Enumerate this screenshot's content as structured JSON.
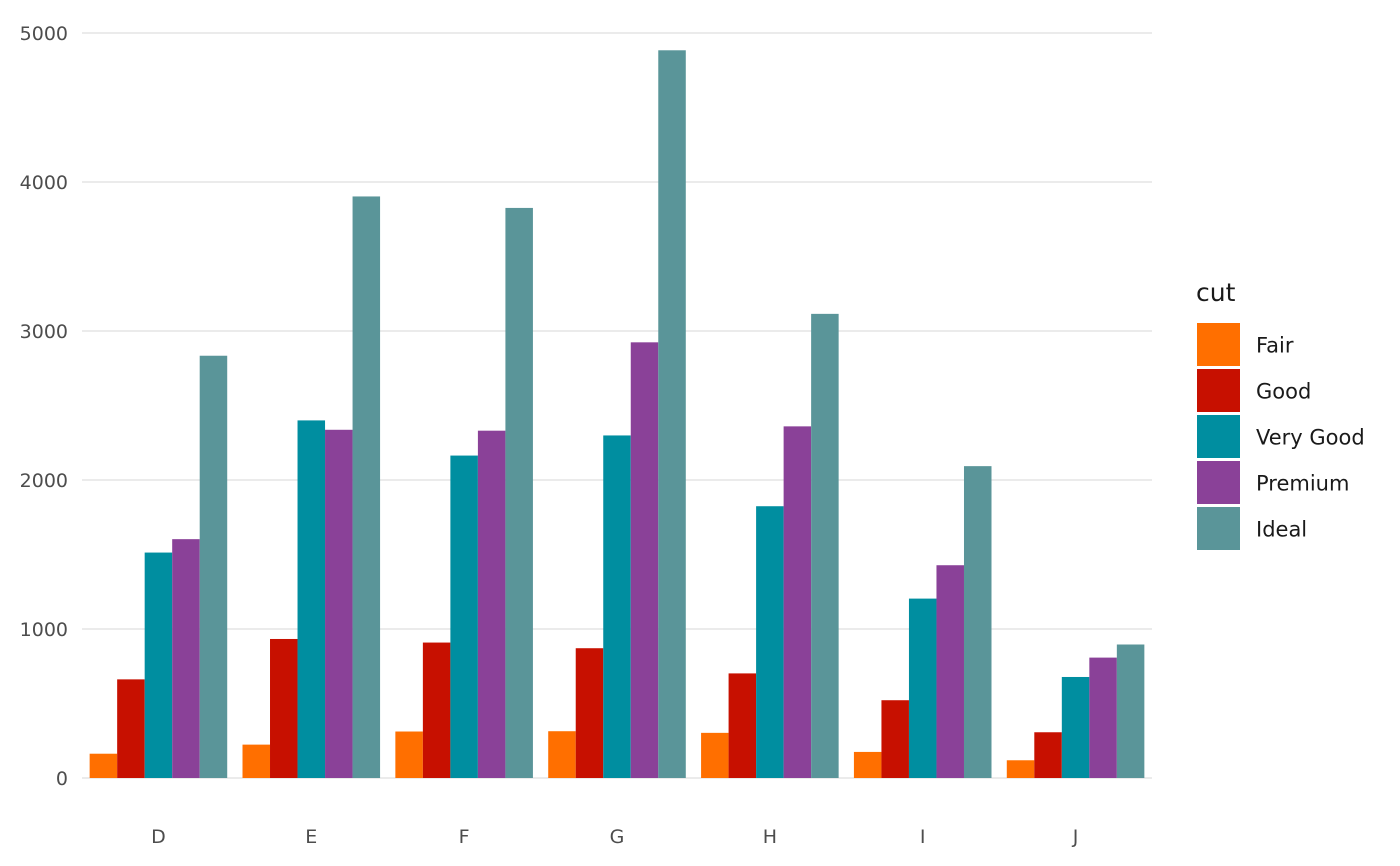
{
  "chart_data": {
    "type": "bar",
    "title": "",
    "xlabel": "",
    "ylabel": "",
    "categories": [
      "D",
      "E",
      "F",
      "G",
      "H",
      "I",
      "J"
    ],
    "ylim": [
      0,
      5000
    ],
    "yticks": [
      0,
      1000,
      2000,
      3000,
      4000,
      5000
    ],
    "grid": true,
    "legend": {
      "title": "cut",
      "placement": "right"
    },
    "series": [
      {
        "name": "Fair",
        "color": "#FF6F00",
        "values": [
          163,
          224,
          312,
          314,
          303,
          175,
          119
        ]
      },
      {
        "name": "Good",
        "color": "#C71000",
        "values": [
          662,
          933,
          909,
          871,
          702,
          522,
          307
        ]
      },
      {
        "name": "Very Good",
        "color": "#008EA0",
        "values": [
          1513,
          2400,
          2164,
          2299,
          1824,
          1204,
          678
        ]
      },
      {
        "name": "Premium",
        "color": "#8A4198",
        "values": [
          1603,
          2337,
          2331,
          2924,
          2360,
          1428,
          808
        ]
      },
      {
        "name": "Ideal",
        "color": "#5A9599",
        "values": [
          2834,
          3903,
          3826,
          4884,
          3115,
          2093,
          896
        ]
      }
    ]
  }
}
